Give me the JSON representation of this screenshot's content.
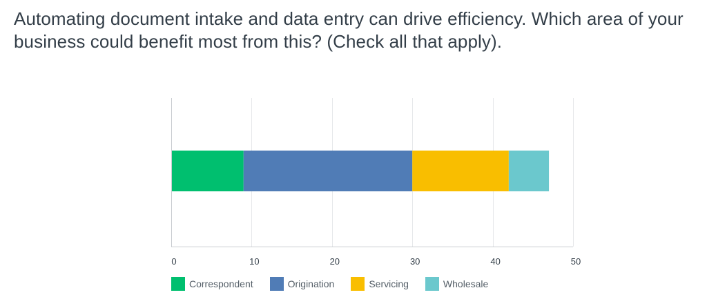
{
  "question": "Automating document intake and data entry can drive efficiency. Which area of your business could benefit most from this? (Check all that apply).",
  "chart_data": {
    "type": "bar",
    "orientation": "horizontal",
    "stacked": true,
    "title": "",
    "xlabel": "",
    "ylabel": "",
    "categories": [
      ""
    ],
    "xlim": [
      0,
      50
    ],
    "xticks": [
      0,
      10,
      20,
      30,
      40,
      50
    ],
    "grid": true,
    "legend_position": "bottom-left",
    "series": [
      {
        "name": "Correspondent",
        "values": [
          9
        ],
        "color": "#00bf6f"
      },
      {
        "name": "Origination",
        "values": [
          21
        ],
        "color": "#507cb6"
      },
      {
        "name": "Servicing",
        "values": [
          12
        ],
        "color": "#f9be00"
      },
      {
        "name": "Wholesale",
        "values": [
          5
        ],
        "color": "#6bc8cd"
      }
    ]
  }
}
